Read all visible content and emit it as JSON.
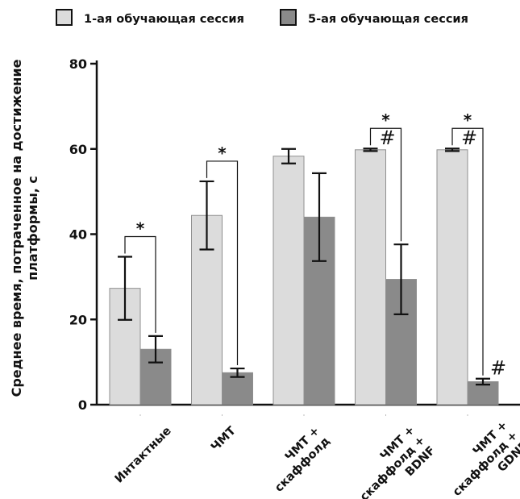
{
  "chart_data": {
    "type": "bar",
    "title": "",
    "xlabel": "",
    "ylabel_lines": [
      "Среднее время, потраченное на достижение",
      "платформы, с"
    ],
    "ylim": [
      0,
      80
    ],
    "yticks": [
      0,
      20,
      40,
      60,
      80
    ],
    "grid": false,
    "legend_position": "top",
    "categories": [
      [
        "Интактные"
      ],
      [
        "ЧМТ"
      ],
      [
        "ЧМТ +",
        "скаффолд"
      ],
      [
        "ЧМТ +",
        "скаффолд +",
        "BDNF"
      ],
      [
        "ЧМТ +",
        "скаффолд +",
        "GDNF"
      ]
    ],
    "series": [
      {
        "name": "1-ая обучающая сессия",
        "color": "#dcdcdc",
        "values": [
          27.3,
          44.4,
          58.3,
          59.8,
          59.8
        ],
        "errors": [
          7.4,
          8.0,
          1.7,
          0.3,
          0.3
        ]
      },
      {
        "name": "5-ая обучающая сессия",
        "color": "#8a8a8a",
        "values": [
          13.0,
          7.5,
          44.0,
          29.4,
          5.4
        ],
        "errors": [
          3.1,
          1.0,
          10.3,
          8.2,
          0.7
        ]
      }
    ],
    "annotations": {
      "star_brackets": [
        {
          "category_index": 0,
          "text": "*"
        },
        {
          "category_index": 1,
          "text": "*"
        },
        {
          "category_index": 3,
          "text": "*"
        },
        {
          "category_index": 4,
          "text": "*"
        }
      ],
      "hash_marks": [
        {
          "category_index": 3,
          "series_index": 0,
          "text": "#"
        },
        {
          "category_index": 4,
          "series_index": 0,
          "text": "#"
        },
        {
          "category_index": 4,
          "series_index": 1,
          "text": "#"
        }
      ]
    }
  }
}
